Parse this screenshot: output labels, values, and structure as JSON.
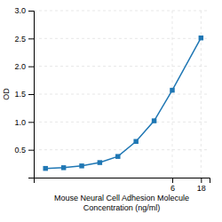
{
  "chart_data": {
    "type": "line",
    "xlabel": "Mouse Neural Cell Adhesion Molecule\nConcentration (ng/ml)",
    "ylabel": "OD",
    "x": [
      0.047,
      0.094,
      0.188,
      0.375,
      0.75,
      1.5,
      3.0,
      6.0,
      18.0
    ],
    "values": [
      0.165,
      0.178,
      0.21,
      0.27,
      0.38,
      0.65,
      1.02,
      1.57,
      2.51
    ],
    "xlim": [
      0.03,
      25
    ],
    "ylim": [
      0.0,
      3.0
    ],
    "xticks": [
      6,
      18
    ],
    "yticks": [
      0.5,
      {
        "value": 1.0,
        "label": "1.0"
      },
      1.5,
      {
        "value": 2.0,
        "label": "2.0"
      },
      2.5,
      {
        "value": 3.0,
        "label": "3.0"
      }
    ],
    "log": "x",
    "grid": true,
    "marker": "square"
  }
}
